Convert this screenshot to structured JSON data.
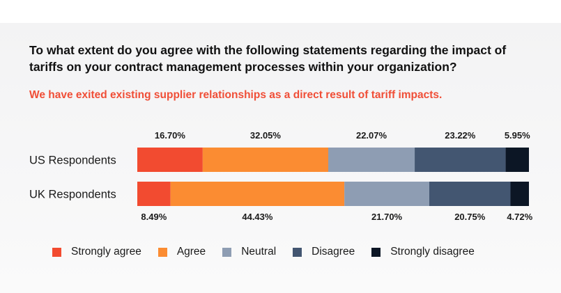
{
  "question": "To what extent do you agree with the following statements regarding the impact of tariffs on your contract management processes within your organization?",
  "statement": "We have exited existing supplier relationships as a direct result of tariff impacts.",
  "colors": {
    "strongly_agree": "#f24b30",
    "agree": "#fb8c32",
    "neutral": "#8e9db3",
    "disagree": "#435671",
    "strongly_disagree": "#0c1625"
  },
  "chart_data": {
    "type": "bar",
    "orientation": "horizontal",
    "stacked": true,
    "normalized": true,
    "categories": [
      "US Respondents",
      "UK Respondents"
    ],
    "series": [
      {
        "name": "Strongly agree",
        "values": [
          16.7,
          8.49
        ],
        "labels": [
          "16.70%",
          "8.49%"
        ]
      },
      {
        "name": "Agree",
        "values": [
          32.05,
          44.43
        ],
        "labels": [
          "32.05%",
          "44.43%"
        ]
      },
      {
        "name": "Neutral",
        "values": [
          22.07,
          21.7
        ],
        "labels": [
          "22.07%",
          "21.70%"
        ]
      },
      {
        "name": "Disagree",
        "values": [
          23.22,
          20.75
        ],
        "labels": [
          "23.22%",
          "20.75%"
        ]
      },
      {
        "name": "Strongly disagree",
        "values": [
          5.95,
          4.72
        ],
        "labels": [
          "5.95%",
          "4.72%"
        ]
      }
    ],
    "label_position": [
      "above",
      "below"
    ],
    "xlim": [
      0,
      100
    ],
    "grid": false,
    "legend_position": "bottom"
  }
}
